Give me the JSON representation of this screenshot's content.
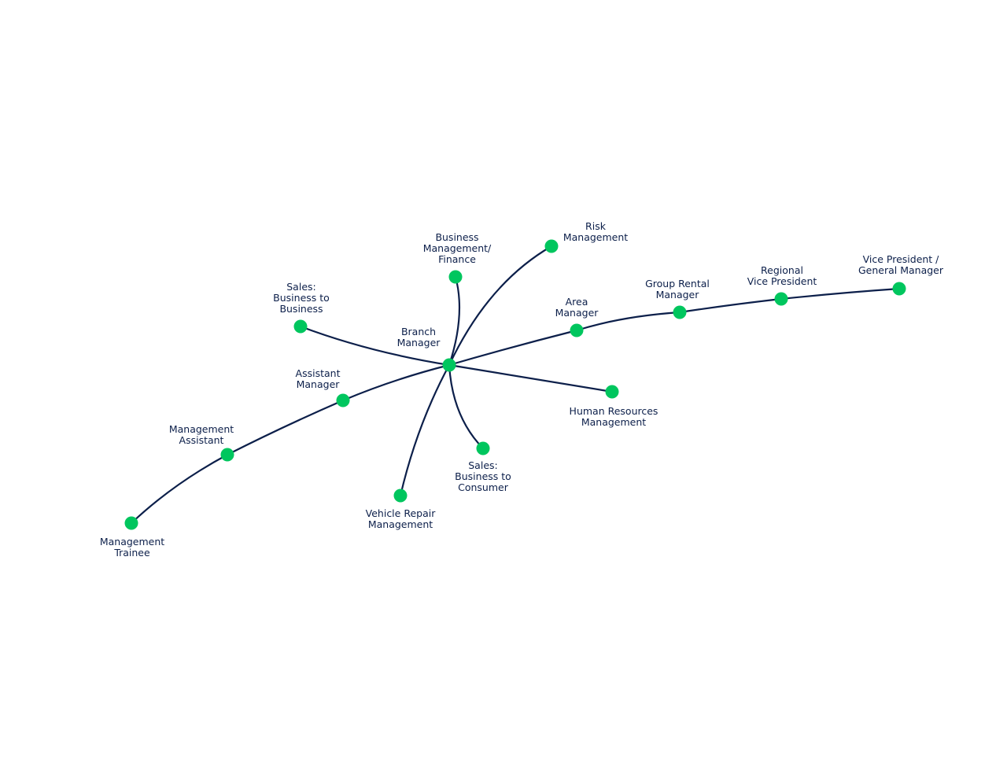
{
  "colors": {
    "line": "#0c1f4a",
    "node": "#00c65e",
    "text": "#0c1f4a"
  },
  "nodes": [
    {
      "id": "branch",
      "label": "Branch\nManager"
    },
    {
      "id": "sales-b2b",
      "label": "Sales:\nBusiness to\nBusiness"
    },
    {
      "id": "business-finance",
      "label": "Business\nManagement/\nFinance"
    },
    {
      "id": "risk",
      "label": "Risk\nManagement"
    },
    {
      "id": "area",
      "label": "Area\nManager"
    },
    {
      "id": "group-rental",
      "label": "Group Rental\nManager"
    },
    {
      "id": "regional-vp",
      "label": "Regional\nVice President"
    },
    {
      "id": "vp-gm",
      "label": "Vice President /\nGeneral Manager"
    },
    {
      "id": "hr",
      "label": "Human Resources\nManagement"
    },
    {
      "id": "sales-b2c",
      "label": "Sales:\nBusiness to\nConsumer"
    },
    {
      "id": "vehicle-repair",
      "label": "Vehicle Repair\nManagement"
    },
    {
      "id": "assistant",
      "label": "Assistant\nManager"
    },
    {
      "id": "mgmt-assistant",
      "label": "Management\nAssistant"
    },
    {
      "id": "trainee",
      "label": "Management\nTrainee"
    }
  ],
  "edges": [
    [
      "branch",
      "sales-b2b"
    ],
    [
      "branch",
      "business-finance"
    ],
    [
      "branch",
      "risk"
    ],
    [
      "branch",
      "area"
    ],
    [
      "area",
      "group-rental"
    ],
    [
      "group-rental",
      "regional-vp"
    ],
    [
      "regional-vp",
      "vp-gm"
    ],
    [
      "branch",
      "hr"
    ],
    [
      "branch",
      "sales-b2c"
    ],
    [
      "branch",
      "vehicle-repair"
    ],
    [
      "branch",
      "assistant"
    ],
    [
      "assistant",
      "mgmt-assistant"
    ],
    [
      "mgmt-assistant",
      "trainee"
    ]
  ]
}
